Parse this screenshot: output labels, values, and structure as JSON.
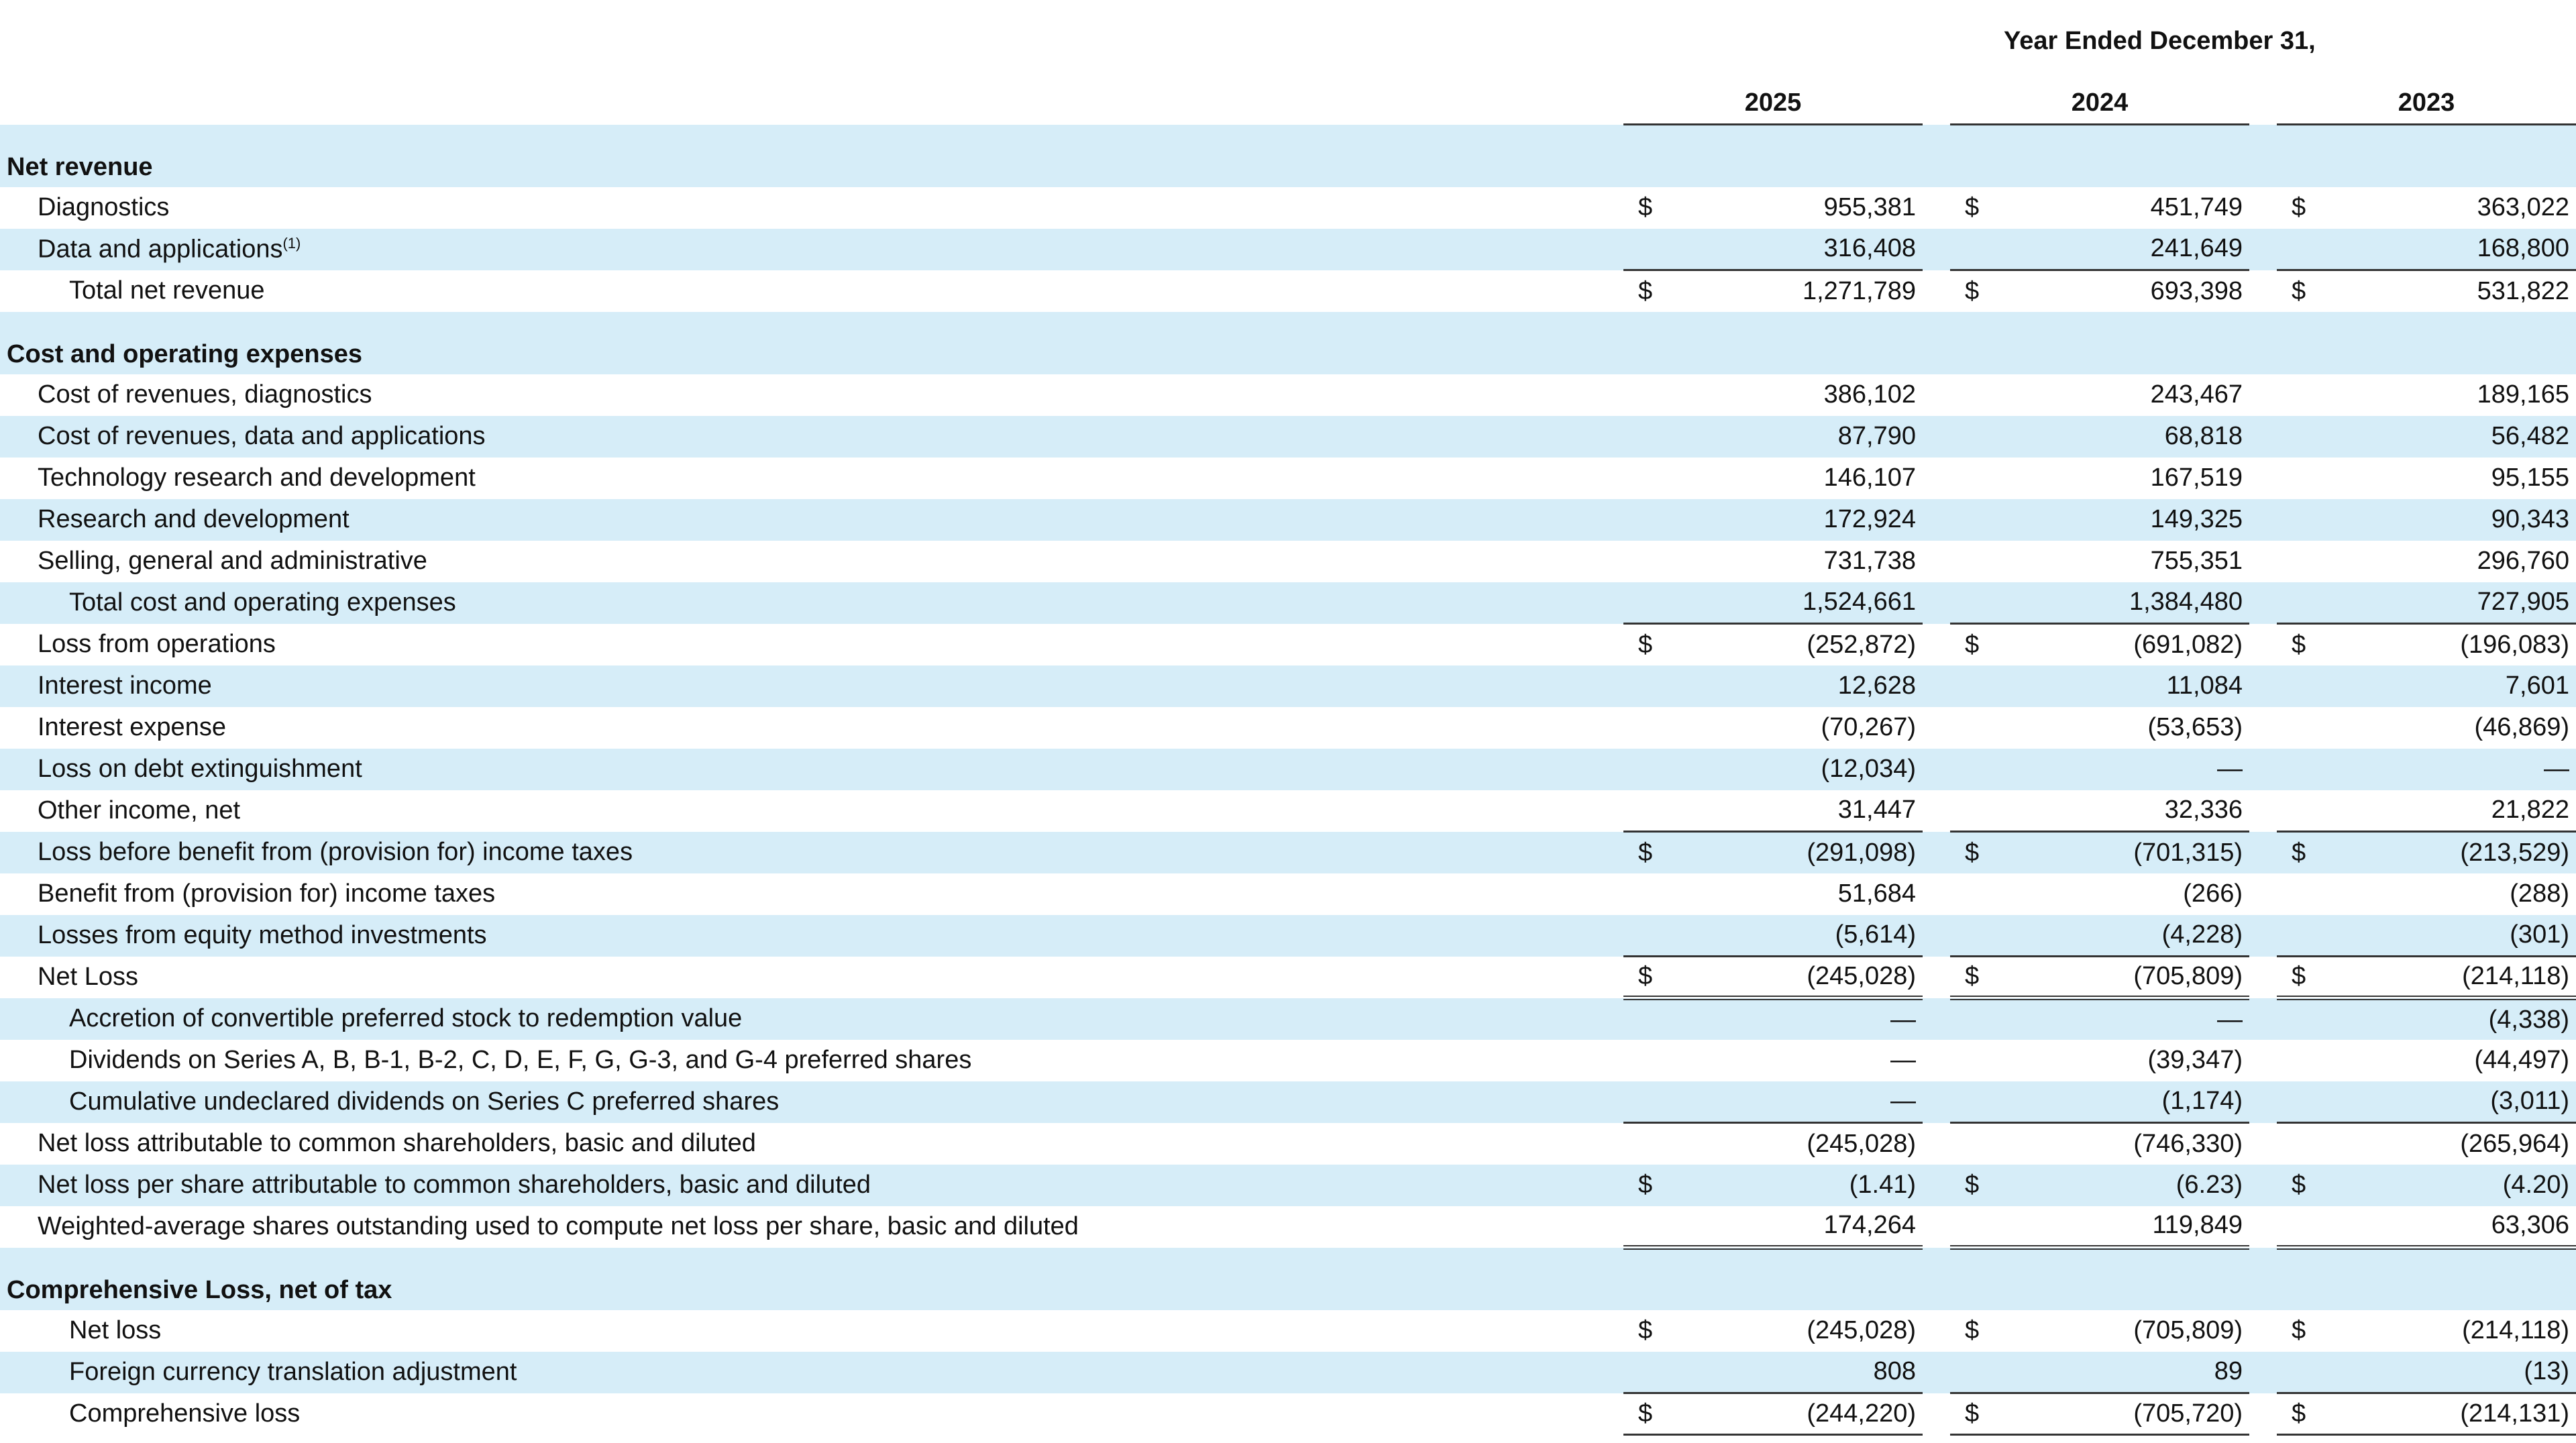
{
  "header": {
    "group": "Year Ended December 31,",
    "years": [
      "2025",
      "2024",
      "2023"
    ]
  },
  "sections": [
    {
      "title": "Net revenue",
      "rows": [
        {
          "label": "Diagnostics",
          "cells": [
            {
              "cur": "$",
              "v": "955,381"
            },
            {
              "cur": "$",
              "v": "451,749"
            },
            {
              "cur": "$",
              "v": "363,022"
            }
          ]
        },
        {
          "label": "Data and applications",
          "note": "(1)",
          "cells": [
            {
              "v": "316,408"
            },
            {
              "v": "241,649"
            },
            {
              "v": "168,800"
            }
          ]
        },
        {
          "label": "Total net revenue",
          "cells": [
            {
              "cur": "$",
              "v": "1,271,789"
            },
            {
              "cur": "$",
              "v": "693,398"
            },
            {
              "cur": "$",
              "v": "531,822"
            }
          ]
        }
      ]
    },
    {
      "title": "Cost and operating expenses",
      "rows": [
        {
          "label": "Cost of revenues, diagnostics",
          "cells": [
            {
              "v": "386,102"
            },
            {
              "v": "243,467"
            },
            {
              "v": "189,165"
            }
          ]
        },
        {
          "label": "Cost of revenues, data and applications",
          "cells": [
            {
              "v": "87,790"
            },
            {
              "v": "68,818"
            },
            {
              "v": "56,482"
            }
          ]
        },
        {
          "label": "Technology research and development",
          "cells": [
            {
              "v": "146,107"
            },
            {
              "v": "167,519"
            },
            {
              "v": "95,155"
            }
          ]
        },
        {
          "label": "Research and development",
          "cells": [
            {
              "v": "172,924"
            },
            {
              "v": "149,325"
            },
            {
              "v": "90,343"
            }
          ]
        },
        {
          "label": "Selling, general and administrative",
          "cells": [
            {
              "v": "731,738"
            },
            {
              "v": "755,351"
            },
            {
              "v": "296,760"
            }
          ]
        },
        {
          "label": "Total cost and operating expenses",
          "cells": [
            {
              "v": "1,524,661"
            },
            {
              "v": "1,384,480"
            },
            {
              "v": "727,905"
            }
          ]
        },
        {
          "label": "Loss from operations",
          "cells": [
            {
              "cur": "$",
              "v": "(252,872)"
            },
            {
              "cur": "$",
              "v": "(691,082)"
            },
            {
              "cur": "$",
              "v": "(196,083)"
            }
          ]
        },
        {
          "label": "Interest income",
          "cells": [
            {
              "v": "12,628"
            },
            {
              "v": "11,084"
            },
            {
              "v": "7,601"
            }
          ]
        },
        {
          "label": "Interest expense",
          "cells": [
            {
              "v": "(70,267)"
            },
            {
              "v": "(53,653)"
            },
            {
              "v": "(46,869)"
            }
          ]
        },
        {
          "label": "Loss on debt extinguishment",
          "cells": [
            {
              "v": "(12,034)"
            },
            {
              "v": "—"
            },
            {
              "v": "—"
            }
          ]
        },
        {
          "label": "Other income, net",
          "cells": [
            {
              "v": "31,447"
            },
            {
              "v": "32,336"
            },
            {
              "v": "21,822"
            }
          ]
        },
        {
          "label": "Loss before benefit from (provision for) income taxes",
          "cells": [
            {
              "cur": "$",
              "v": "(291,098)"
            },
            {
              "cur": "$",
              "v": "(701,315)"
            },
            {
              "cur": "$",
              "v": "(213,529)"
            }
          ]
        },
        {
          "label": "Benefit from (provision for) income taxes",
          "cells": [
            {
              "v": "51,684"
            },
            {
              "v": "(266)"
            },
            {
              "v": "(288)"
            }
          ]
        },
        {
          "label": "Losses from equity method investments",
          "cells": [
            {
              "v": "(5,614)"
            },
            {
              "v": "(4,228)"
            },
            {
              "v": "(301)"
            }
          ]
        },
        {
          "label": "Net Loss",
          "cells": [
            {
              "cur": "$",
              "v": "(245,028)"
            },
            {
              "cur": "$",
              "v": "(705,809)"
            },
            {
              "cur": "$",
              "v": "(214,118)"
            }
          ]
        },
        {
          "label": "Accretion of convertible preferred stock to redemption value",
          "cells": [
            {
              "v": "—"
            },
            {
              "v": "—"
            },
            {
              "v": "(4,338)"
            }
          ]
        },
        {
          "label": "Dividends on Series A, B, B-1, B-2, C, D, E, F, G, G-3, and G-4 preferred shares",
          "cells": [
            {
              "v": "—"
            },
            {
              "v": "(39,347)"
            },
            {
              "v": "(44,497)"
            }
          ]
        },
        {
          "label": "Cumulative undeclared dividends on Series C preferred shares",
          "cells": [
            {
              "v": "—"
            },
            {
              "v": "(1,174)"
            },
            {
              "v": "(3,011)"
            }
          ]
        },
        {
          "label": "Net loss attributable to common shareholders, basic and diluted",
          "cells": [
            {
              "v": "(245,028)"
            },
            {
              "v": "(746,330)"
            },
            {
              "v": "(265,964)"
            }
          ]
        },
        {
          "label": "Net loss per share attributable to common shareholders, basic and diluted",
          "cells": [
            {
              "cur": "$",
              "v": "(1.41)"
            },
            {
              "cur": "$",
              "v": "(6.23)"
            },
            {
              "cur": "$",
              "v": "(4.20)"
            }
          ]
        },
        {
          "label": "Weighted-average shares outstanding used to compute net loss per share, basic and diluted",
          "cells": [
            {
              "v": "174,264"
            },
            {
              "v": "119,849"
            },
            {
              "v": "63,306"
            }
          ]
        }
      ]
    },
    {
      "title": "Comprehensive Loss, net of tax",
      "rows": [
        {
          "label": "Net loss",
          "cells": [
            {
              "cur": "$",
              "v": "(245,028)"
            },
            {
              "cur": "$",
              "v": "(705,809)"
            },
            {
              "cur": "$",
              "v": "(214,118)"
            }
          ]
        },
        {
          "label": "Foreign currency translation adjustment",
          "cells": [
            {
              "v": "808"
            },
            {
              "v": "89"
            },
            {
              "v": "(13)"
            }
          ]
        },
        {
          "label": "Comprehensive loss",
          "cells": [
            {
              "cur": "$",
              "v": "(244,220)"
            },
            {
              "cur": "$",
              "v": "(705,720)"
            },
            {
              "cur": "$",
              "v": "(214,131)"
            }
          ]
        }
      ]
    }
  ]
}
